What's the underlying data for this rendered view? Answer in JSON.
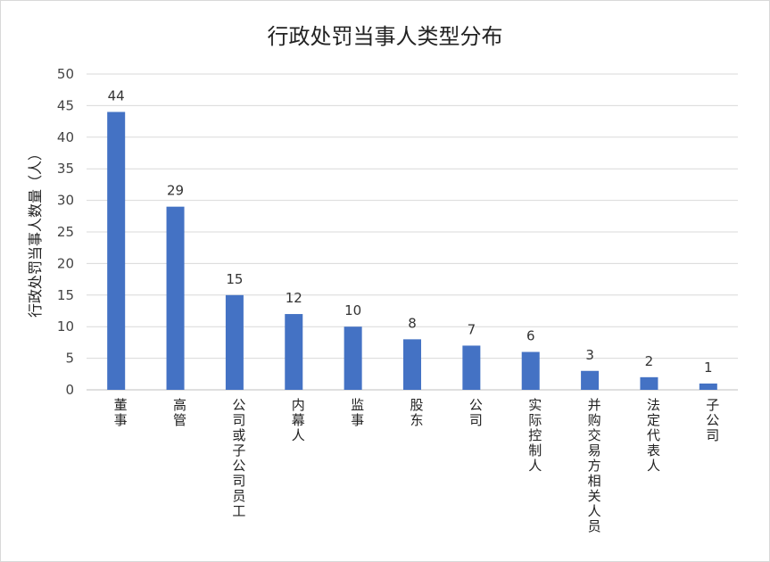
{
  "chart_data": {
    "type": "bar",
    "title": "行政处罚当事人类型分布",
    "ylabel": "行政处罚当事人数量（人）",
    "xlabel": "",
    "ylim": [
      0,
      50
    ],
    "yticks": [
      0,
      5,
      10,
      15,
      20,
      25,
      30,
      35,
      40,
      45,
      50
    ],
    "grid": true,
    "bar_color": "#4472C4",
    "categories": [
      "董事",
      "高管",
      "公司或子公司员工",
      "内幕人",
      "监事",
      "股东",
      "公司",
      "实际控制人",
      "并购交易方相关人员",
      "法定代表人",
      "子公司"
    ],
    "values": [
      44,
      29,
      15,
      12,
      10,
      8,
      7,
      6,
      3,
      2,
      1
    ]
  }
}
